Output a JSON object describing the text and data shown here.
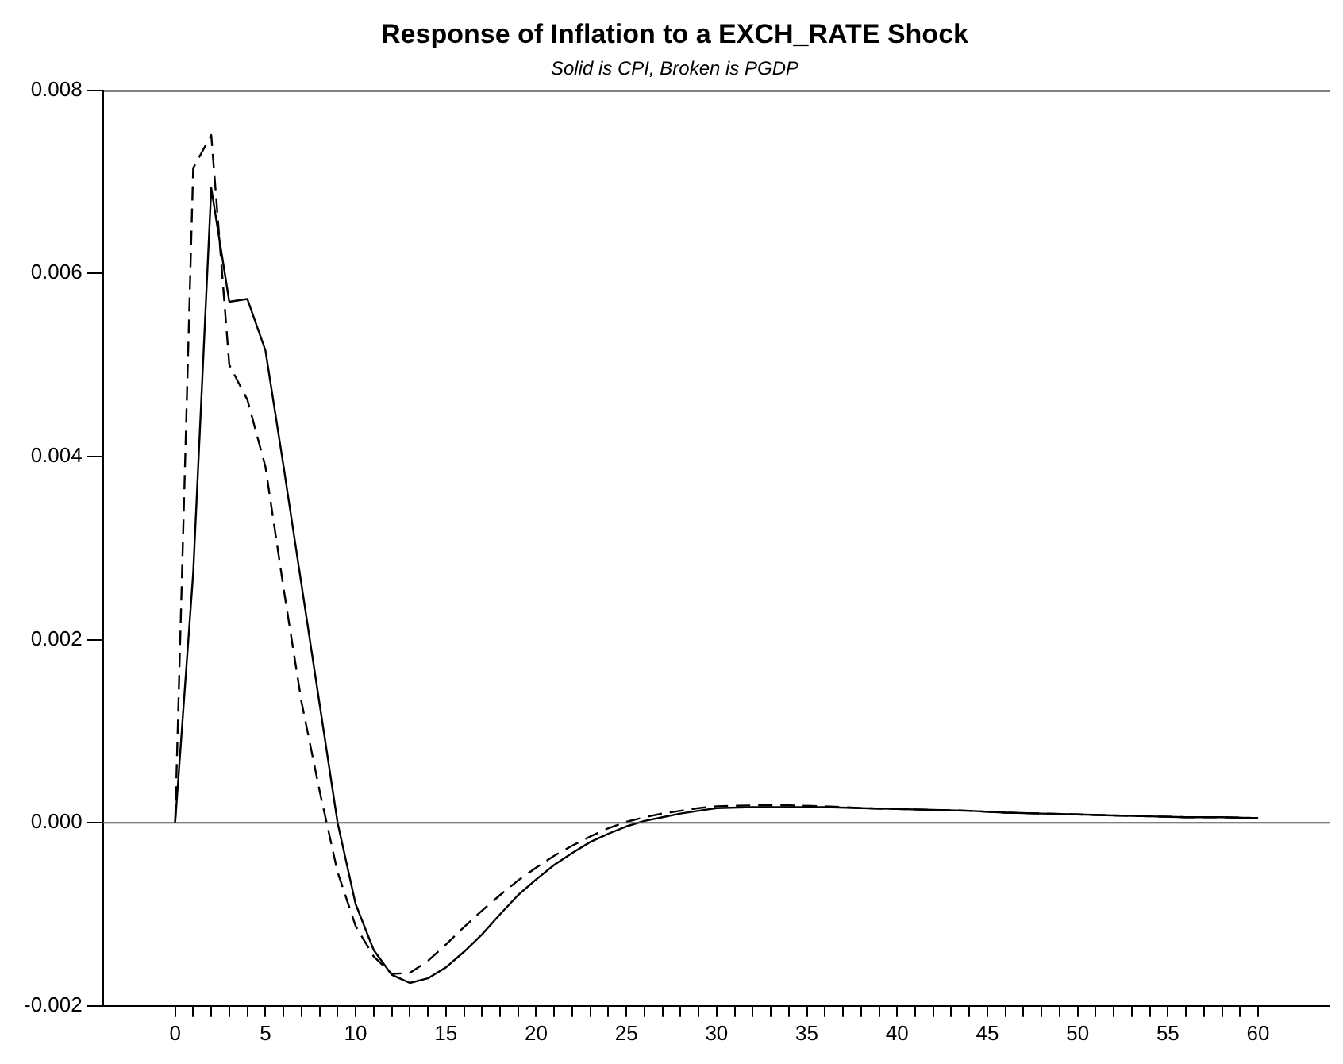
{
  "chart_data": {
    "type": "line",
    "title": "Response of Inflation to a EXCH_RATE Shock",
    "subtitle": "Solid is CPI, Broken is PGDP",
    "x": [
      0,
      1,
      2,
      3,
      4,
      5,
      6,
      7,
      8,
      9,
      10,
      11,
      12,
      13,
      14,
      15,
      16,
      17,
      18,
      19,
      20,
      21,
      22,
      23,
      24,
      25,
      26,
      27,
      28,
      29,
      30,
      32,
      34,
      36,
      38,
      40,
      42,
      44,
      46,
      48,
      50,
      52,
      54,
      56,
      58,
      60
    ],
    "series": [
      {
        "color": "#000000",
        "line_style": "solid",
        "values": [
          0,
          0.00273,
          0.00693,
          0.00569,
          0.00572,
          0.00516,
          0.0039,
          0.0026,
          0.0013,
          0.0,
          -0.00089,
          -0.00139,
          -0.00166,
          -0.00175,
          -0.0017,
          -0.00158,
          -0.00141,
          -0.00122,
          -0.001,
          -0.00079,
          -0.00062,
          -0.00046,
          -0.00033,
          -0.00021,
          -0.00012,
          -4e-05,
          2e-05,
          6e-05,
          0.0001,
          0.00013,
          0.00016,
          0.00017,
          0.00017,
          0.00017,
          0.00016,
          0.00015,
          0.00014,
          0.00013,
          0.00011,
          0.0001,
          9e-05,
          8e-05,
          7e-05,
          6e-05,
          6e-05,
          5e-05
        ]
      },
      {
        "color": "#000000",
        "line_style": "dashed",
        "values": [
          0,
          0.00715,
          0.00751,
          0.005,
          0.00462,
          0.00389,
          0.00257,
          0.00132,
          0.00035,
          -0.00054,
          -0.00113,
          -0.00146,
          -0.00165,
          -0.00164,
          -0.00151,
          -0.00133,
          -0.00114,
          -0.00096,
          -0.00079,
          -0.00063,
          -0.00049,
          -0.00036,
          -0.00025,
          -0.00015,
          -6e-05,
          1e-05,
          6e-05,
          0.0001,
          0.00013,
          0.00016,
          0.00018,
          0.00019,
          0.00019,
          0.00018,
          0.00016,
          0.00015,
          0.00014,
          0.00013,
          0.00011,
          0.0001,
          9e-05,
          8e-05,
          7e-05,
          6e-05,
          6e-05,
          5e-05
        ]
      }
    ],
    "xlim": [
      -4,
      64
    ],
    "xticks": [
      0,
      {
        "value": 1,
        "label": null
      },
      {
        "value": 2,
        "label": null
      },
      {
        "value": 3,
        "label": null
      },
      {
        "value": 4,
        "label": null
      },
      5,
      {
        "value": 6,
        "label": null
      },
      {
        "value": 7,
        "label": null
      },
      {
        "value": 8,
        "label": null
      },
      {
        "value": 9,
        "label": null
      },
      10,
      {
        "value": 11,
        "label": null
      },
      {
        "value": 12,
        "label": null
      },
      {
        "value": 13,
        "label": null
      },
      {
        "value": 14,
        "label": null
      },
      15,
      {
        "value": 16,
        "label": null
      },
      {
        "value": 17,
        "label": null
      },
      {
        "value": 18,
        "label": null
      },
      {
        "value": 19,
        "label": null
      },
      20,
      {
        "value": 21,
        "label": null
      },
      {
        "value": 22,
        "label": null
      },
      {
        "value": 23,
        "label": null
      },
      {
        "value": 24,
        "label": null
      },
      25,
      {
        "value": 26,
        "label": null
      },
      {
        "value": 27,
        "label": null
      },
      {
        "value": 28,
        "label": null
      },
      {
        "value": 29,
        "label": null
      },
      30,
      {
        "value": 31,
        "label": null
      },
      {
        "value": 32,
        "label": null
      },
      {
        "value": 33,
        "label": null
      },
      {
        "value": 34,
        "label": null
      },
      35,
      {
        "value": 36,
        "label": null
      },
      {
        "value": 37,
        "label": null
      },
      {
        "value": 38,
        "label": null
      },
      {
        "value": 39,
        "label": null
      },
      40,
      {
        "value": 41,
        "label": null
      },
      {
        "value": 42,
        "label": null
      },
      {
        "value": 43,
        "label": null
      },
      {
        "value": 44,
        "label": null
      },
      45,
      {
        "value": 46,
        "label": null
      },
      {
        "value": 47,
        "label": null
      },
      {
        "value": 48,
        "label": null
      },
      {
        "value": 49,
        "label": null
      },
      50,
      {
        "value": 51,
        "label": null
      },
      {
        "value": 52,
        "label": null
      },
      {
        "value": 53,
        "label": null
      },
      {
        "value": 54,
        "label": null
      },
      55,
      {
        "value": 56,
        "label": null
      },
      {
        "value": 57,
        "label": null
      },
      {
        "value": 58,
        "label": null
      },
      {
        "value": 59,
        "label": null
      },
      60
    ],
    "ylim": [
      -0.002,
      0.008
    ],
    "yticks": [
      -0.002,
      {
        "value": 0,
        "label": "0.000"
      },
      0.002,
      0.004,
      0.006,
      0.008
    ],
    "ref_lines": [
      {
        "axis": "y",
        "value": 0,
        "color": "#555555"
      }
    ],
    "grid": false,
    "legend": false,
    "marker": "none"
  }
}
